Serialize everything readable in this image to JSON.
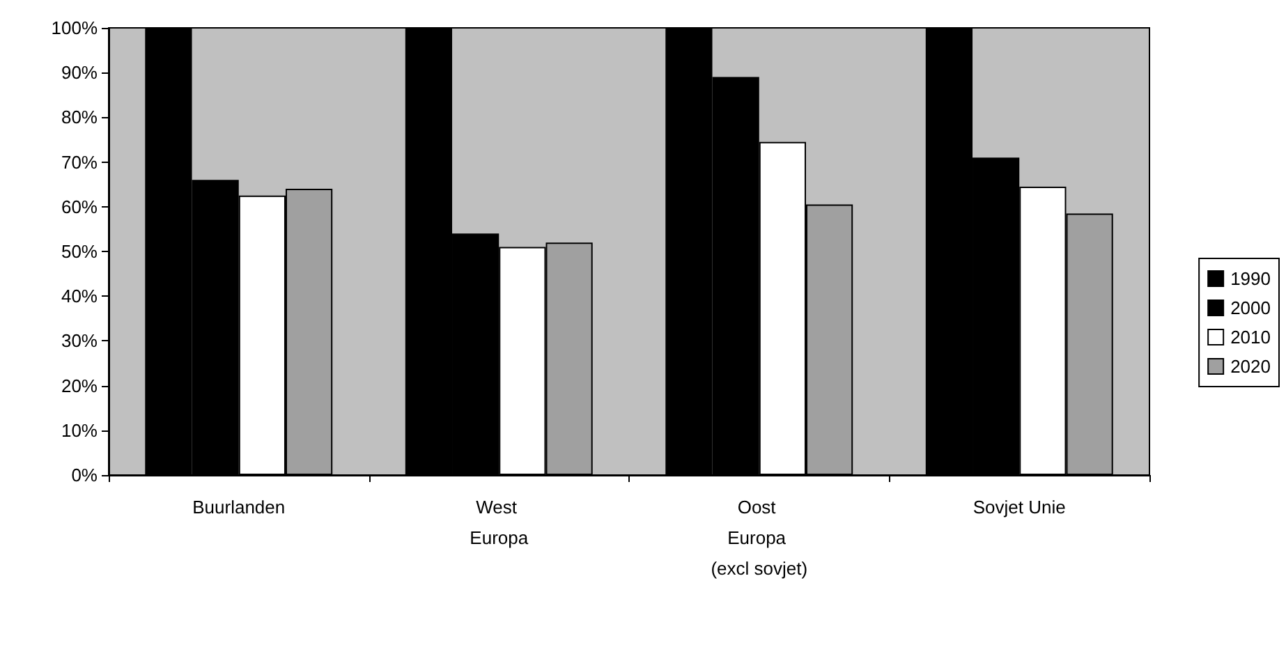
{
  "chart_data": {
    "type": "bar",
    "categories": [
      "Buurlanden",
      "West Europa",
      "Oost Europa (excl sovjet)",
      "Sovjet Unie"
    ],
    "series": [
      {
        "name": "1990",
        "color": "#000000",
        "values": [
          100,
          100,
          100,
          100
        ]
      },
      {
        "name": "2000",
        "color": "#000000",
        "values": [
          66,
          54,
          89,
          71
        ]
      },
      {
        "name": "2010",
        "color": "#ffffff",
        "values": [
          62.5,
          51,
          74.5,
          64.5
        ]
      },
      {
        "name": "2020",
        "color": "#a0a0a0",
        "values": [
          64,
          52,
          60.5,
          58.5
        ]
      }
    ],
    "ylim": [
      0,
      100
    ],
    "yticks": [
      {
        "value": 0,
        "label": "0%"
      },
      {
        "value": 10,
        "label": "10%"
      },
      {
        "value": 20,
        "label": "20%"
      },
      {
        "value": 30,
        "label": "30%"
      },
      {
        "value": 40,
        "label": "40%"
      },
      {
        "value": 50,
        "label": "50%"
      },
      {
        "value": 60,
        "label": "60%"
      },
      {
        "value": 70,
        "label": "70%"
      },
      {
        "value": 80,
        "label": "80%"
      },
      {
        "value": 90,
        "label": "90%"
      },
      {
        "value": 100,
        "label": "100%"
      }
    ],
    "grid": false,
    "legend": "right"
  }
}
